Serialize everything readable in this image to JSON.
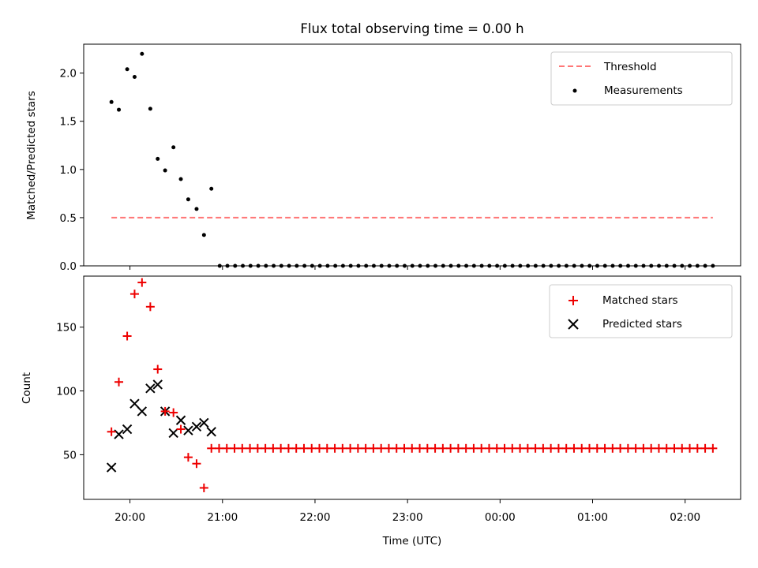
{
  "title": "Flux total observing time = 0.00 h",
  "colors": {
    "threshold": "#ff7777",
    "measurements": "#000000",
    "matched": "#ee0000",
    "predicted": "#000000",
    "axes": "#000000"
  },
  "chart_data": [
    {
      "type": "scatter",
      "panel": "top",
      "ylabel": "Matched/Predicted stars",
      "xlim": [
        19.5,
        26.6
      ],
      "ylim": [
        0.0,
        2.3
      ],
      "yticks": [
        0.0,
        0.5,
        1.0,
        1.5,
        2.0
      ],
      "ytick_labels": [
        "0.0",
        "0.5",
        "1.0",
        "1.5",
        "2.0"
      ],
      "legend_position": "top-right",
      "series": [
        {
          "name": "Threshold",
          "kind": "dashed-line",
          "x": [
            19.8,
            26.3
          ],
          "y": [
            0.5,
            0.5
          ]
        },
        {
          "name": "Measurements",
          "kind": "dot",
          "x": [
            19.8,
            19.88,
            19.97,
            20.05,
            20.13,
            20.22,
            20.3,
            20.38,
            20.47,
            20.55,
            20.63,
            20.72,
            20.8,
            20.88
          ],
          "y": [
            1.7,
            1.62,
            2.04,
            1.96,
            2.2,
            1.63,
            1.11,
            0.99,
            1.23,
            0.9,
            0.69,
            0.59,
            0.32,
            0.8
          ],
          "zero_run": {
            "start": 20.97,
            "end": 26.3,
            "count": 65,
            "value": 0.0
          }
        }
      ]
    },
    {
      "type": "scatter",
      "panel": "bottom",
      "xlabel": "Time (UTC)",
      "ylabel": "Count",
      "xlim": [
        19.5,
        26.6
      ],
      "ylim": [
        15,
        190
      ],
      "yticks": [
        50,
        100,
        150
      ],
      "ytick_labels": [
        "50",
        "100",
        "150"
      ],
      "xticks": [
        20,
        21,
        22,
        23,
        24,
        25,
        26
      ],
      "xtick_labels": [
        "20:00",
        "21:00",
        "22:00",
        "23:00",
        "00:00",
        "01:00",
        "02:00"
      ],
      "legend_position": "top-right",
      "series": [
        {
          "name": "Matched stars",
          "kind": "plus",
          "x": [
            19.8,
            19.88,
            19.97,
            20.05,
            20.13,
            20.22,
            20.3,
            20.38,
            20.47,
            20.55,
            20.63,
            20.72,
            20.8
          ],
          "y": [
            68,
            107,
            143,
            176,
            185,
            166,
            117,
            84,
            83,
            70,
            48,
            43,
            24
          ],
          "constant_run": {
            "start": 20.88,
            "end": 26.3,
            "count": 66,
            "value": 55
          }
        },
        {
          "name": "Predicted stars",
          "kind": "x",
          "x": [
            19.8,
            19.88,
            19.97,
            20.05,
            20.13,
            20.22,
            20.3,
            20.38,
            20.47,
            20.55,
            20.63,
            20.72,
            20.8,
            20.88
          ],
          "y": [
            40,
            66,
            70,
            90,
            84,
            102,
            105,
            84,
            67,
            77,
            69,
            72,
            75,
            68
          ]
        }
      ]
    }
  ]
}
